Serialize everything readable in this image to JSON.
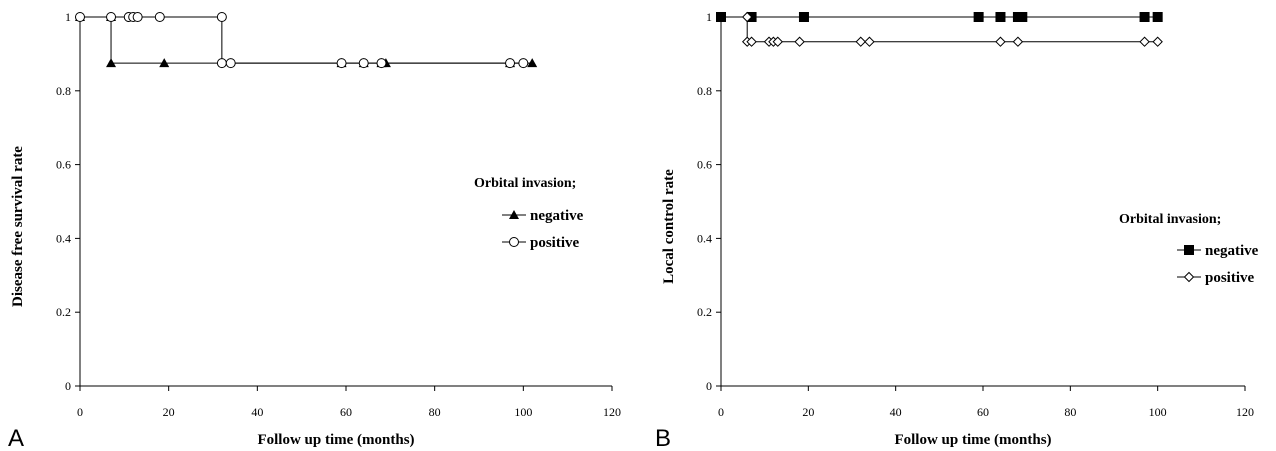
{
  "chart_data": [
    {
      "panel_label": "A",
      "type": "line",
      "step": true,
      "xlabel": "Follow up time (months)",
      "ylabel": "Disease free survival rate",
      "xlim": [
        0,
        120
      ],
      "ylim": [
        0,
        1
      ],
      "xticks": [
        "0",
        "20",
        "40",
        "60",
        "80",
        "100",
        "120"
      ],
      "yticks": [
        "0",
        "0.2",
        "0.4",
        "0.6",
        "0.8",
        "1"
      ],
      "grid": false,
      "legend": {
        "title": "Orbital invasion;",
        "position": "right-middle"
      },
      "series": [
        {
          "name": "negative",
          "marker": "filled-triangle",
          "steps": [
            [
              0,
              1
            ],
            [
              7,
              1
            ],
            [
              7,
              0.875
            ],
            [
              102,
              0.875
            ]
          ],
          "points": [
            [
              0,
              1
            ],
            [
              7,
              1
            ],
            [
              7,
              0.875
            ],
            [
              19,
              0.875
            ],
            [
              59,
              0.875
            ],
            [
              64,
              0.875
            ],
            [
              68,
              0.875
            ],
            [
              69,
              0.875
            ],
            [
              97,
              0.875
            ],
            [
              102,
              0.875
            ]
          ]
        },
        {
          "name": "positive",
          "marker": "open-circle",
          "steps": [
            [
              0,
              1
            ],
            [
              32,
              1
            ],
            [
              32,
              0.875
            ],
            [
              102,
              0.875
            ]
          ],
          "points": [
            [
              0,
              1
            ],
            [
              7,
              1
            ],
            [
              11,
              1
            ],
            [
              12,
              1
            ],
            [
              13,
              1
            ],
            [
              18,
              1
            ],
            [
              32,
              1
            ],
            [
              32,
              0.875
            ],
            [
              34,
              0.875
            ],
            [
              59,
              0.875
            ],
            [
              64,
              0.875
            ],
            [
              68,
              0.875
            ],
            [
              97,
              0.875
            ],
            [
              100,
              0.875
            ]
          ]
        }
      ]
    },
    {
      "panel_label": "B",
      "type": "line",
      "step": true,
      "xlabel": "Follow up time (months)",
      "ylabel": "Local control rate",
      "xlim": [
        0,
        120
      ],
      "ylim": [
        0,
        1
      ],
      "xticks": [
        "0",
        "20",
        "40",
        "60",
        "80",
        "100",
        "120"
      ],
      "yticks": [
        "0",
        "0.2",
        "0.4",
        "0.6",
        "0.8",
        "1"
      ],
      "grid": false,
      "legend": {
        "title": "Orbital invasion;",
        "position": "right-middle"
      },
      "series": [
        {
          "name": "negative",
          "marker": "filled-square",
          "steps": [
            [
              0,
              1
            ],
            [
              100,
              1
            ]
          ],
          "points": [
            [
              0,
              1
            ],
            [
              7,
              1
            ],
            [
              19,
              1
            ],
            [
              59,
              1
            ],
            [
              64,
              1
            ],
            [
              68,
              1
            ],
            [
              69,
              1
            ],
            [
              97,
              1
            ],
            [
              100,
              1
            ]
          ]
        },
        {
          "name": "positive",
          "marker": "open-diamond",
          "steps": [
            [
              0,
              1
            ],
            [
              6,
              1
            ],
            [
              6,
              0.933
            ],
            [
              100,
              0.933
            ]
          ],
          "points": [
            [
              6,
              1
            ],
            [
              6,
              0.933
            ],
            [
              7,
              0.933
            ],
            [
              11,
              0.933
            ],
            [
              12,
              0.933
            ],
            [
              13,
              0.933
            ],
            [
              18,
              0.933
            ],
            [
              32,
              0.933
            ],
            [
              34,
              0.933
            ],
            [
              64,
              0.933
            ],
            [
              68,
              0.933
            ],
            [
              97,
              0.933
            ],
            [
              100,
              0.933
            ]
          ]
        }
      ]
    }
  ]
}
